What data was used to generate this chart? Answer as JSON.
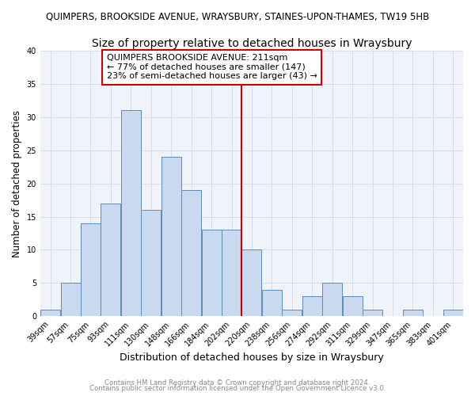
{
  "title": "QUIMPERS, BROOKSIDE AVENUE, WRAYSBURY, STAINES-UPON-THAMES, TW19 5HB",
  "subtitle": "Size of property relative to detached houses in Wraysbury",
  "xlabel": "Distribution of detached houses by size in Wraysbury",
  "ylabel": "Number of detached properties",
  "bin_labels": [
    "39sqm",
    "57sqm",
    "75sqm",
    "93sqm",
    "111sqm",
    "130sqm",
    "148sqm",
    "166sqm",
    "184sqm",
    "202sqm",
    "220sqm",
    "238sqm",
    "256sqm",
    "274sqm",
    "292sqm",
    "311sqm",
    "329sqm",
    "347sqm",
    "365sqm",
    "383sqm",
    "401sqm"
  ],
  "bar_values": [
    1,
    5,
    14,
    17,
    31,
    16,
    24,
    19,
    13,
    13,
    10,
    4,
    1,
    3,
    5,
    3,
    1,
    0,
    1,
    0,
    1
  ],
  "bar_color": "#c9d9f0",
  "bar_edgecolor": "#5b8db8",
  "vline_color": "#cc0000",
  "annotation_box_edgecolor": "#cc0000",
  "annotation_line1": "QUIMPERS BROOKSIDE AVENUE: 211sqm",
  "annotation_line2": "← 77% of detached houses are smaller (147)",
  "annotation_line3": "23% of semi-detached houses are larger (43) →",
  "ylim": [
    0,
    40
  ],
  "yticks": [
    0,
    5,
    10,
    15,
    20,
    25,
    30,
    35,
    40
  ],
  "footer1": "Contains HM Land Registry data © Crown copyright and database right 2024.",
  "footer2": "Contains public sector information licensed under the Open Government Licence v3.0.",
  "title_fontsize": 8.5,
  "subtitle_fontsize": 10,
  "axis_label_fontsize": 9,
  "tick_fontsize": 7,
  "annotation_fontsize": 8,
  "ylabel_fontsize": 8.5
}
